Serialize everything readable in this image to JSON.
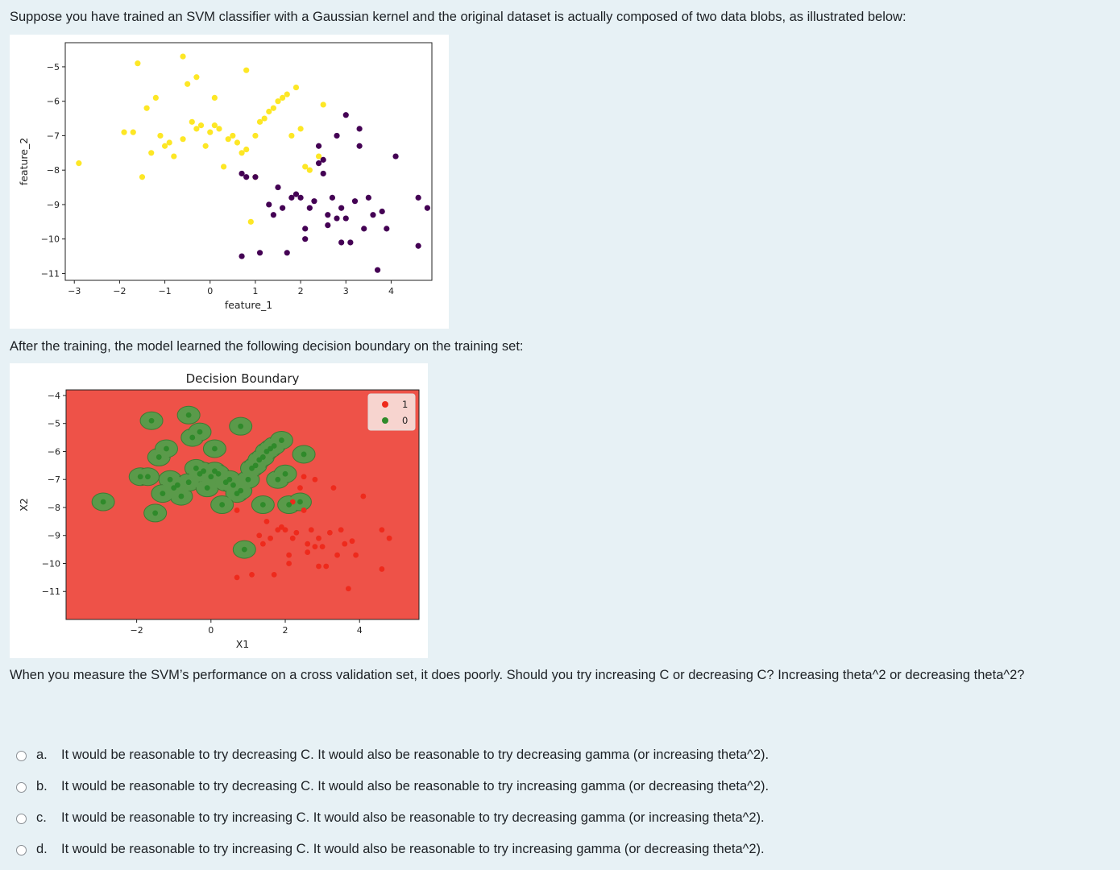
{
  "question": {
    "intro": "Suppose you have trained an SVM classifier with a Gaussian kernel and the original dataset is actually composed of two data blobs, as illustrated below:",
    "after_training": "After the training, the model learned the following decision boundary on the training set:",
    "measure": "When you measure the SVM’s performance on a cross validation set, it does poorly. Should you try increasing C or decreasing C? Increasing theta^2 or decreasing theta^2?"
  },
  "answers": [
    {
      "letter": "a.",
      "text": "It would be reasonable to try decreasing C. It would also be reasonable to try decreasing gamma (or increasing theta^2)."
    },
    {
      "letter": "b.",
      "text": "It would be reasonable to try decreasing C. It would also be reasonable to try increasing gamma (or decreasing theta^2)."
    },
    {
      "letter": "c.",
      "text": "It would be reasonable to try increasing C. It would also be reasonable to try decreasing gamma (or increasing theta^2)."
    },
    {
      "letter": "d.",
      "text": "It would be reasonable to try increasing C. It would also be reasonable to try increasing gamma (or decreasing theta^2)."
    }
  ],
  "chart_data": [
    {
      "type": "scatter",
      "title": "",
      "xlabel": "feature_1",
      "ylabel": "feature_2",
      "xlim": [
        -3.2,
        4.9
      ],
      "ylim": [
        -11.2,
        -4.3
      ],
      "xticks": [
        "−3",
        "−2",
        "−1",
        "0",
        "1",
        "2",
        "3",
        "4"
      ],
      "yticks": [
        "−5",
        "−6",
        "−7",
        "−8",
        "−9",
        "−10",
        "−11"
      ],
      "colors": {
        "yellow": "#fde725",
        "purple": "#440154"
      },
      "series": [
        {
          "color": "yellow",
          "points": [
            [
              -2.9,
              -7.8
            ],
            [
              -1.6,
              -4.9
            ],
            [
              -1.4,
              -6.2
            ],
            [
              -1.2,
              -5.9
            ],
            [
              -1.1,
              -7.0
            ],
            [
              -1.0,
              -7.3
            ],
            [
              -0.9,
              -7.2
            ],
            [
              -0.8,
              -7.6
            ],
            [
              -0.6,
              -4.7
            ],
            [
              -0.6,
              -7.1
            ],
            [
              -0.4,
              -6.6
            ],
            [
              -0.3,
              -6.8
            ],
            [
              -0.2,
              -6.7
            ],
            [
              -0.1,
              -7.3
            ],
            [
              0,
              -6.9
            ],
            [
              0.1,
              -6.7
            ],
            [
              0.2,
              -6.8
            ],
            [
              0.4,
              -7.1
            ],
            [
              0.5,
              -7.0
            ],
            [
              0.6,
              -7.2
            ],
            [
              0.7,
              -7.5
            ],
            [
              0.8,
              -7.4
            ],
            [
              1.0,
              -7.0
            ],
            [
              1.1,
              -6.6
            ],
            [
              1.2,
              -6.5
            ],
            [
              1.3,
              -6.3
            ],
            [
              1.4,
              -6.2
            ],
            [
              1.5,
              -6.0
            ],
            [
              1.6,
              -5.9
            ],
            [
              1.7,
              -5.8
            ],
            [
              1.8,
              -7.0
            ],
            [
              1.9,
              -5.6
            ],
            [
              2.0,
              -6.8
            ],
            [
              2.1,
              -7.9
            ],
            [
              2.2,
              -8.0
            ],
            [
              2.4,
              -7.6
            ],
            [
              2.5,
              -6.1
            ],
            [
              -1.5,
              -8.2
            ],
            [
              -1.3,
              -7.5
            ],
            [
              -0.5,
              -5.5
            ],
            [
              0.3,
              -7.9
            ],
            [
              0.8,
              -5.1
            ],
            [
              0.9,
              -9.5
            ],
            [
              1.0,
              -8.2
            ],
            [
              -1.9,
              -6.9
            ],
            [
              -1.7,
              -6.9
            ],
            [
              -0.3,
              -5.3
            ],
            [
              0.1,
              -5.9
            ]
          ]
        },
        {
          "color": "purple",
          "points": [
            [
              0.7,
              -10.5
            ],
            [
              0.7,
              -8.1
            ],
            [
              0.8,
              -8.2
            ],
            [
              1.0,
              -8.2
            ],
            [
              1.3,
              -9.0
            ],
            [
              1.4,
              -9.3
            ],
            [
              1.5,
              -8.5
            ],
            [
              1.6,
              -9.1
            ],
            [
              1.7,
              -10.4
            ],
            [
              1.8,
              -8.8
            ],
            [
              1.9,
              -8.7
            ],
            [
              2.0,
              -8.8
            ],
            [
              2.1,
              -9.7
            ],
            [
              2.1,
              -10.0
            ],
            [
              2.2,
              -9.1
            ],
            [
              2.3,
              -8.9
            ],
            [
              2.4,
              -7.3
            ],
            [
              2.4,
              -7.8
            ],
            [
              2.5,
              -8.1
            ],
            [
              2.5,
              -7.7
            ],
            [
              2.6,
              -9.3
            ],
            [
              2.6,
              -9.6
            ],
            [
              2.7,
              -8.8
            ],
            [
              2.8,
              -9.4
            ],
            [
              2.8,
              -7.0
            ],
            [
              2.9,
              -9.1
            ],
            [
              2.9,
              -10.1
            ],
            [
              3.0,
              -6.4
            ],
            [
              3.0,
              -9.4
            ],
            [
              3.1,
              -10.1
            ],
            [
              3.2,
              -8.9
            ],
            [
              3.3,
              -6.8
            ],
            [
              3.3,
              -7.3
            ],
            [
              3.4,
              -9.7
            ],
            [
              3.5,
              -8.8
            ],
            [
              3.6,
              -9.3
            ],
            [
              3.7,
              -10.9
            ],
            [
              3.9,
              -9.7
            ],
            [
              4.1,
              -7.6
            ],
            [
              4.6,
              -8.8
            ],
            [
              4.6,
              -10.2
            ],
            [
              4.8,
              -9.1
            ],
            [
              1.1,
              -10.4
            ],
            [
              3.8,
              -9.2
            ]
          ]
        }
      ]
    },
    {
      "type": "scatter",
      "title": "Decision Boundary",
      "xlabel": "X1",
      "ylabel": "X2",
      "xlim": [
        -3.9,
        5.6
      ],
      "ylim": [
        -12.0,
        -3.8
      ],
      "xticks": [
        "−2",
        "0",
        "2",
        "4"
      ],
      "yticks": [
        "−4",
        "−5",
        "−6",
        "−7",
        "−8",
        "−9",
        "−10",
        "−11"
      ],
      "legend": {
        "position": "top-right",
        "entries": [
          "1",
          "0"
        ]
      },
      "colors": {
        "background": "#ee5248",
        "region": "#5a9a4a",
        "red_point": "#ee2a1c",
        "green_point": "#2f8a2a",
        "legend_bg": "#f7d4cf"
      },
      "series": [
        {
          "name": "1",
          "color": "red_point",
          "points": [
            [
              0.7,
              -10.5
            ],
            [
              0.7,
              -8.1
            ],
            [
              1.3,
              -9.0
            ],
            [
              1.4,
              -9.3
            ],
            [
              1.5,
              -8.5
            ],
            [
              1.6,
              -9.1
            ],
            [
              1.7,
              -10.4
            ],
            [
              1.8,
              -8.8
            ],
            [
              1.9,
              -8.7
            ],
            [
              2.0,
              -8.8
            ],
            [
              2.1,
              -9.7
            ],
            [
              2.1,
              -10.0
            ],
            [
              2.2,
              -9.1
            ],
            [
              2.3,
              -8.9
            ],
            [
              2.4,
              -7.3
            ],
            [
              2.5,
              -8.1
            ],
            [
              2.6,
              -9.3
            ],
            [
              2.6,
              -9.6
            ],
            [
              2.7,
              -8.8
            ],
            [
              2.8,
              -9.4
            ],
            [
              2.8,
              -7.0
            ],
            [
              2.9,
              -9.1
            ],
            [
              2.9,
              -10.1
            ],
            [
              3.0,
              -9.4
            ],
            [
              3.1,
              -10.1
            ],
            [
              3.2,
              -8.9
            ],
            [
              3.3,
              -7.3
            ],
            [
              3.4,
              -9.7
            ],
            [
              3.5,
              -8.8
            ],
            [
              3.6,
              -9.3
            ],
            [
              3.7,
              -10.9
            ],
            [
              3.9,
              -9.7
            ],
            [
              4.1,
              -7.6
            ],
            [
              4.6,
              -8.8
            ],
            [
              4.6,
              -10.2
            ],
            [
              4.8,
              -9.1
            ],
            [
              1.1,
              -10.4
            ],
            [
              3.8,
              -9.2
            ],
            [
              2.2,
              -7.8
            ],
            [
              2.5,
              -6.9
            ]
          ]
        },
        {
          "name": "0",
          "color": "green_point",
          "points": [
            [
              -2.9,
              -7.8
            ],
            [
              -1.6,
              -4.9
            ],
            [
              -1.4,
              -6.2
            ],
            [
              -1.2,
              -5.9
            ],
            [
              -1.1,
              -7.0
            ],
            [
              -1.0,
              -7.3
            ],
            [
              -0.9,
              -7.2
            ],
            [
              -0.8,
              -7.6
            ],
            [
              -0.6,
              -4.7
            ],
            [
              -0.6,
              -7.1
            ],
            [
              -0.4,
              -6.6
            ],
            [
              -0.3,
              -6.8
            ],
            [
              -0.2,
              -6.7
            ],
            [
              -0.1,
              -7.3
            ],
            [
              0,
              -6.9
            ],
            [
              0.1,
              -6.7
            ],
            [
              0.2,
              -6.8
            ],
            [
              0.4,
              -7.1
            ],
            [
              0.5,
              -7.0
            ],
            [
              0.6,
              -7.2
            ],
            [
              0.7,
              -7.5
            ],
            [
              0.8,
              -7.4
            ],
            [
              1.0,
              -7.0
            ],
            [
              1.1,
              -6.6
            ],
            [
              1.2,
              -6.5
            ],
            [
              1.3,
              -6.3
            ],
            [
              1.4,
              -6.2
            ],
            [
              1.5,
              -6.0
            ],
            [
              1.6,
              -5.9
            ],
            [
              1.7,
              -5.8
            ],
            [
              1.8,
              -7.0
            ],
            [
              1.9,
              -5.6
            ],
            [
              2.0,
              -6.8
            ],
            [
              2.1,
              -7.9
            ],
            [
              2.4,
              -7.8
            ],
            [
              2.5,
              -6.1
            ],
            [
              -1.5,
              -8.2
            ],
            [
              -1.3,
              -7.5
            ],
            [
              -0.5,
              -5.5
            ],
            [
              0.3,
              -7.9
            ],
            [
              0.8,
              -5.1
            ],
            [
              0.9,
              -9.5
            ],
            [
              1.4,
              -7.9
            ],
            [
              -1.9,
              -6.9
            ],
            [
              -1.7,
              -6.9
            ],
            [
              -0.3,
              -5.3
            ],
            [
              0.1,
              -5.9
            ]
          ]
        }
      ]
    }
  ]
}
